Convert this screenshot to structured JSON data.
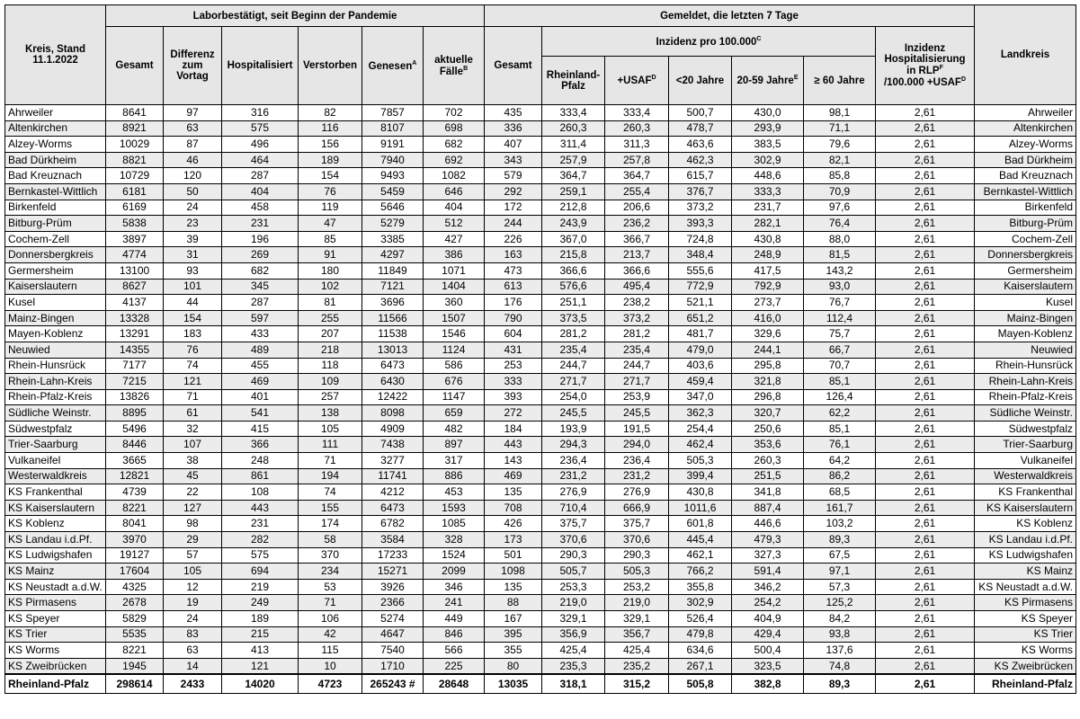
{
  "header": {
    "kreis": "Kreis, Stand 11.1.2022",
    "group1": "Laborbestätigt, seit Beginn der Pandemie",
    "group2": "Gemeldet, die letzten 7 Tage",
    "inzidenz": {
      "text": "Inzidenz pro 100.000",
      "sup": "C"
    },
    "landkreis": "Landkreis",
    "columns": [
      {
        "text": "Gesamt"
      },
      {
        "text": "Differenz zum Vortag"
      },
      {
        "text": "Hospitalisiert"
      },
      {
        "text": "Verstorben"
      },
      {
        "text": "Genesen",
        "sup": "A"
      },
      {
        "text": "aktuelle Fälle",
        "sup": "B"
      },
      {
        "text": "Gesamt"
      },
      {
        "text": "Rheinland-Pfalz"
      },
      {
        "text": "+USAF",
        "sup": "D"
      },
      {
        "text": "<20 Jahre"
      },
      {
        "text": "20-59 Jahre",
        "sup": "E"
      },
      {
        "text": "≥ 60 Jahre"
      }
    ],
    "hosp": {
      "text": "Inzidenz Hospitalisierung in RLP",
      "sup": "F",
      "text2": "/100.000 +USAF",
      "sup2": "D"
    }
  },
  "table": {
    "rows": [
      [
        "Ahrweiler",
        "8641",
        "97",
        "316",
        "82",
        "7857",
        "702",
        "435",
        "333,4",
        "333,4",
        "500,7",
        "430,0",
        "98,1",
        "2,61",
        "Ahrweiler"
      ],
      [
        "Altenkirchen",
        "8921",
        "63",
        "575",
        "116",
        "8107",
        "698",
        "336",
        "260,3",
        "260,3",
        "478,7",
        "293,9",
        "71,1",
        "2,61",
        "Altenkirchen"
      ],
      [
        "Alzey-Worms",
        "10029",
        "87",
        "496",
        "156",
        "9191",
        "682",
        "407",
        "311,4",
        "311,3",
        "463,6",
        "383,5",
        "79,6",
        "2,61",
        "Alzey-Worms"
      ],
      [
        "Bad Dürkheim",
        "8821",
        "46",
        "464",
        "189",
        "7940",
        "692",
        "343",
        "257,9",
        "257,8",
        "462,3",
        "302,9",
        "82,1",
        "2,61",
        "Bad Dürkheim"
      ],
      [
        "Bad Kreuznach",
        "10729",
        "120",
        "287",
        "154",
        "9493",
        "1082",
        "579",
        "364,7",
        "364,7",
        "615,7",
        "448,6",
        "85,8",
        "2,61",
        "Bad Kreuznach"
      ],
      [
        "Bernkastel-Wittlich",
        "6181",
        "50",
        "404",
        "76",
        "5459",
        "646",
        "292",
        "259,1",
        "255,4",
        "376,7",
        "333,3",
        "70,9",
        "2,61",
        "Bernkastel-Wittlich"
      ],
      [
        "Birkenfeld",
        "6169",
        "24",
        "458",
        "119",
        "5646",
        "404",
        "172",
        "212,8",
        "206,6",
        "373,2",
        "231,7",
        "97,6",
        "2,61",
        "Birkenfeld"
      ],
      [
        "Bitburg-Prüm",
        "5838",
        "23",
        "231",
        "47",
        "5279",
        "512",
        "244",
        "243,9",
        "236,2",
        "393,3",
        "282,1",
        "76,4",
        "2,61",
        "Bitburg-Prüm"
      ],
      [
        "Cochem-Zell",
        "3897",
        "39",
        "196",
        "85",
        "3385",
        "427",
        "226",
        "367,0",
        "366,7",
        "724,8",
        "430,8",
        "88,0",
        "2,61",
        "Cochem-Zell"
      ],
      [
        "Donnersbergkreis",
        "4774",
        "31",
        "269",
        "91",
        "4297",
        "386",
        "163",
        "215,8",
        "213,7",
        "348,4",
        "248,9",
        "81,5",
        "2,61",
        "Donnersbergkreis"
      ],
      [
        "Germersheim",
        "13100",
        "93",
        "682",
        "180",
        "11849",
        "1071",
        "473",
        "366,6",
        "366,6",
        "555,6",
        "417,5",
        "143,2",
        "2,61",
        "Germersheim"
      ],
      [
        "Kaiserslautern",
        "8627",
        "101",
        "345",
        "102",
        "7121",
        "1404",
        "613",
        "576,6",
        "495,4",
        "772,9",
        "792,9",
        "93,0",
        "2,61",
        "Kaiserslautern"
      ],
      [
        "Kusel",
        "4137",
        "44",
        "287",
        "81",
        "3696",
        "360",
        "176",
        "251,1",
        "238,2",
        "521,1",
        "273,7",
        "76,7",
        "2,61",
        "Kusel"
      ],
      [
        "Mainz-Bingen",
        "13328",
        "154",
        "597",
        "255",
        "11566",
        "1507",
        "790",
        "373,5",
        "373,2",
        "651,2",
        "416,0",
        "112,4",
        "2,61",
        "Mainz-Bingen"
      ],
      [
        "Mayen-Koblenz",
        "13291",
        "183",
        "433",
        "207",
        "11538",
        "1546",
        "604",
        "281,2",
        "281,2",
        "481,7",
        "329,6",
        "75,7",
        "2,61",
        "Mayen-Koblenz"
      ],
      [
        "Neuwied",
        "14355",
        "76",
        "489",
        "218",
        "13013",
        "1124",
        "431",
        "235,4",
        "235,4",
        "479,0",
        "244,1",
        "66,7",
        "2,61",
        "Neuwied"
      ],
      [
        "Rhein-Hunsrück",
        "7177",
        "74",
        "455",
        "118",
        "6473",
        "586",
        "253",
        "244,7",
        "244,7",
        "403,6",
        "295,8",
        "70,7",
        "2,61",
        "Rhein-Hunsrück"
      ],
      [
        "Rhein-Lahn-Kreis",
        "7215",
        "121",
        "469",
        "109",
        "6430",
        "676",
        "333",
        "271,7",
        "271,7",
        "459,4",
        "321,8",
        "85,1",
        "2,61",
        "Rhein-Lahn-Kreis"
      ],
      [
        "Rhein-Pfalz-Kreis",
        "13826",
        "71",
        "401",
        "257",
        "12422",
        "1147",
        "393",
        "254,0",
        "253,9",
        "347,0",
        "296,8",
        "126,4",
        "2,61",
        "Rhein-Pfalz-Kreis"
      ],
      [
        "Südliche Weinstr.",
        "8895",
        "61",
        "541",
        "138",
        "8098",
        "659",
        "272",
        "245,5",
        "245,5",
        "362,3",
        "320,7",
        "62,2",
        "2,61",
        "Südliche Weinstr."
      ],
      [
        "Südwestpfalz",
        "5496",
        "32",
        "415",
        "105",
        "4909",
        "482",
        "184",
        "193,9",
        "191,5",
        "254,4",
        "250,6",
        "85,1",
        "2,61",
        "Südwestpfalz"
      ],
      [
        "Trier-Saarburg",
        "8446",
        "107",
        "366",
        "111",
        "7438",
        "897",
        "443",
        "294,3",
        "294,0",
        "462,4",
        "353,6",
        "76,1",
        "2,61",
        "Trier-Saarburg"
      ],
      [
        "Vulkaneifel",
        "3665",
        "38",
        "248",
        "71",
        "3277",
        "317",
        "143",
        "236,4",
        "236,4",
        "505,3",
        "260,3",
        "64,2",
        "2,61",
        "Vulkaneifel"
      ],
      [
        "Westerwaldkreis",
        "12821",
        "45",
        "861",
        "194",
        "11741",
        "886",
        "469",
        "231,2",
        "231,2",
        "399,4",
        "251,5",
        "86,2",
        "2,61",
        "Westerwaldkreis"
      ],
      [
        "KS Frankenthal",
        "4739",
        "22",
        "108",
        "74",
        "4212",
        "453",
        "135",
        "276,9",
        "276,9",
        "430,8",
        "341,8",
        "68,5",
        "2,61",
        "KS Frankenthal"
      ],
      [
        "KS Kaiserslautern",
        "8221",
        "127",
        "443",
        "155",
        "6473",
        "1593",
        "708",
        "710,4",
        "666,9",
        "1011,6",
        "887,4",
        "161,7",
        "2,61",
        "KS Kaiserslautern"
      ],
      [
        "KS Koblenz",
        "8041",
        "98",
        "231",
        "174",
        "6782",
        "1085",
        "426",
        "375,7",
        "375,7",
        "601,8",
        "446,6",
        "103,2",
        "2,61",
        "KS Koblenz"
      ],
      [
        "KS Landau i.d.Pf.",
        "3970",
        "29",
        "282",
        "58",
        "3584",
        "328",
        "173",
        "370,6",
        "370,6",
        "445,4",
        "479,3",
        "89,3",
        "2,61",
        "KS Landau i.d.Pf."
      ],
      [
        "KS Ludwigshafen",
        "19127",
        "57",
        "575",
        "370",
        "17233",
        "1524",
        "501",
        "290,3",
        "290,3",
        "462,1",
        "327,3",
        "67,5",
        "2,61",
        "KS Ludwigshafen"
      ],
      [
        "KS Mainz",
        "17604",
        "105",
        "694",
        "234",
        "15271",
        "2099",
        "1098",
        "505,7",
        "505,3",
        "766,2",
        "591,4",
        "97,1",
        "2,61",
        "KS Mainz"
      ],
      [
        "KS Neustadt a.d.W.",
        "4325",
        "12",
        "219",
        "53",
        "3926",
        "346",
        "135",
        "253,3",
        "253,2",
        "355,8",
        "346,2",
        "57,3",
        "2,61",
        "KS Neustadt a.d.W."
      ],
      [
        "KS Pirmasens",
        "2678",
        "19",
        "249",
        "71",
        "2366",
        "241",
        "88",
        "219,0",
        "219,0",
        "302,9",
        "254,2",
        "125,2",
        "2,61",
        "KS Pirmasens"
      ],
      [
        "KS Speyer",
        "5829",
        "24",
        "189",
        "106",
        "5274",
        "449",
        "167",
        "329,1",
        "329,1",
        "526,4",
        "404,9",
        "84,2",
        "2,61",
        "KS Speyer"
      ],
      [
        "KS Trier",
        "5535",
        "83",
        "215",
        "42",
        "4647",
        "846",
        "395",
        "356,9",
        "356,7",
        "479,8",
        "429,4",
        "93,8",
        "2,61",
        "KS Trier"
      ],
      [
        "KS Worms",
        "8221",
        "63",
        "413",
        "115",
        "7540",
        "566",
        "355",
        "425,4",
        "425,4",
        "634,6",
        "500,4",
        "137,6",
        "2,61",
        "KS Worms"
      ],
      [
        "KS Zweibrücken",
        "1945",
        "14",
        "121",
        "10",
        "1710",
        "225",
        "80",
        "235,3",
        "235,2",
        "267,1",
        "323,5",
        "74,8",
        "2,61",
        "KS Zweibrücken"
      ]
    ],
    "total": [
      "Rheinland-Pfalz",
      "298614",
      "2433",
      "14020",
      "4723",
      "265243 #",
      "28648",
      "13035",
      "318,1",
      "315,2",
      "505,8",
      "382,8",
      "89,3",
      "2,61",
      "Rheinland-Pfalz"
    ]
  }
}
